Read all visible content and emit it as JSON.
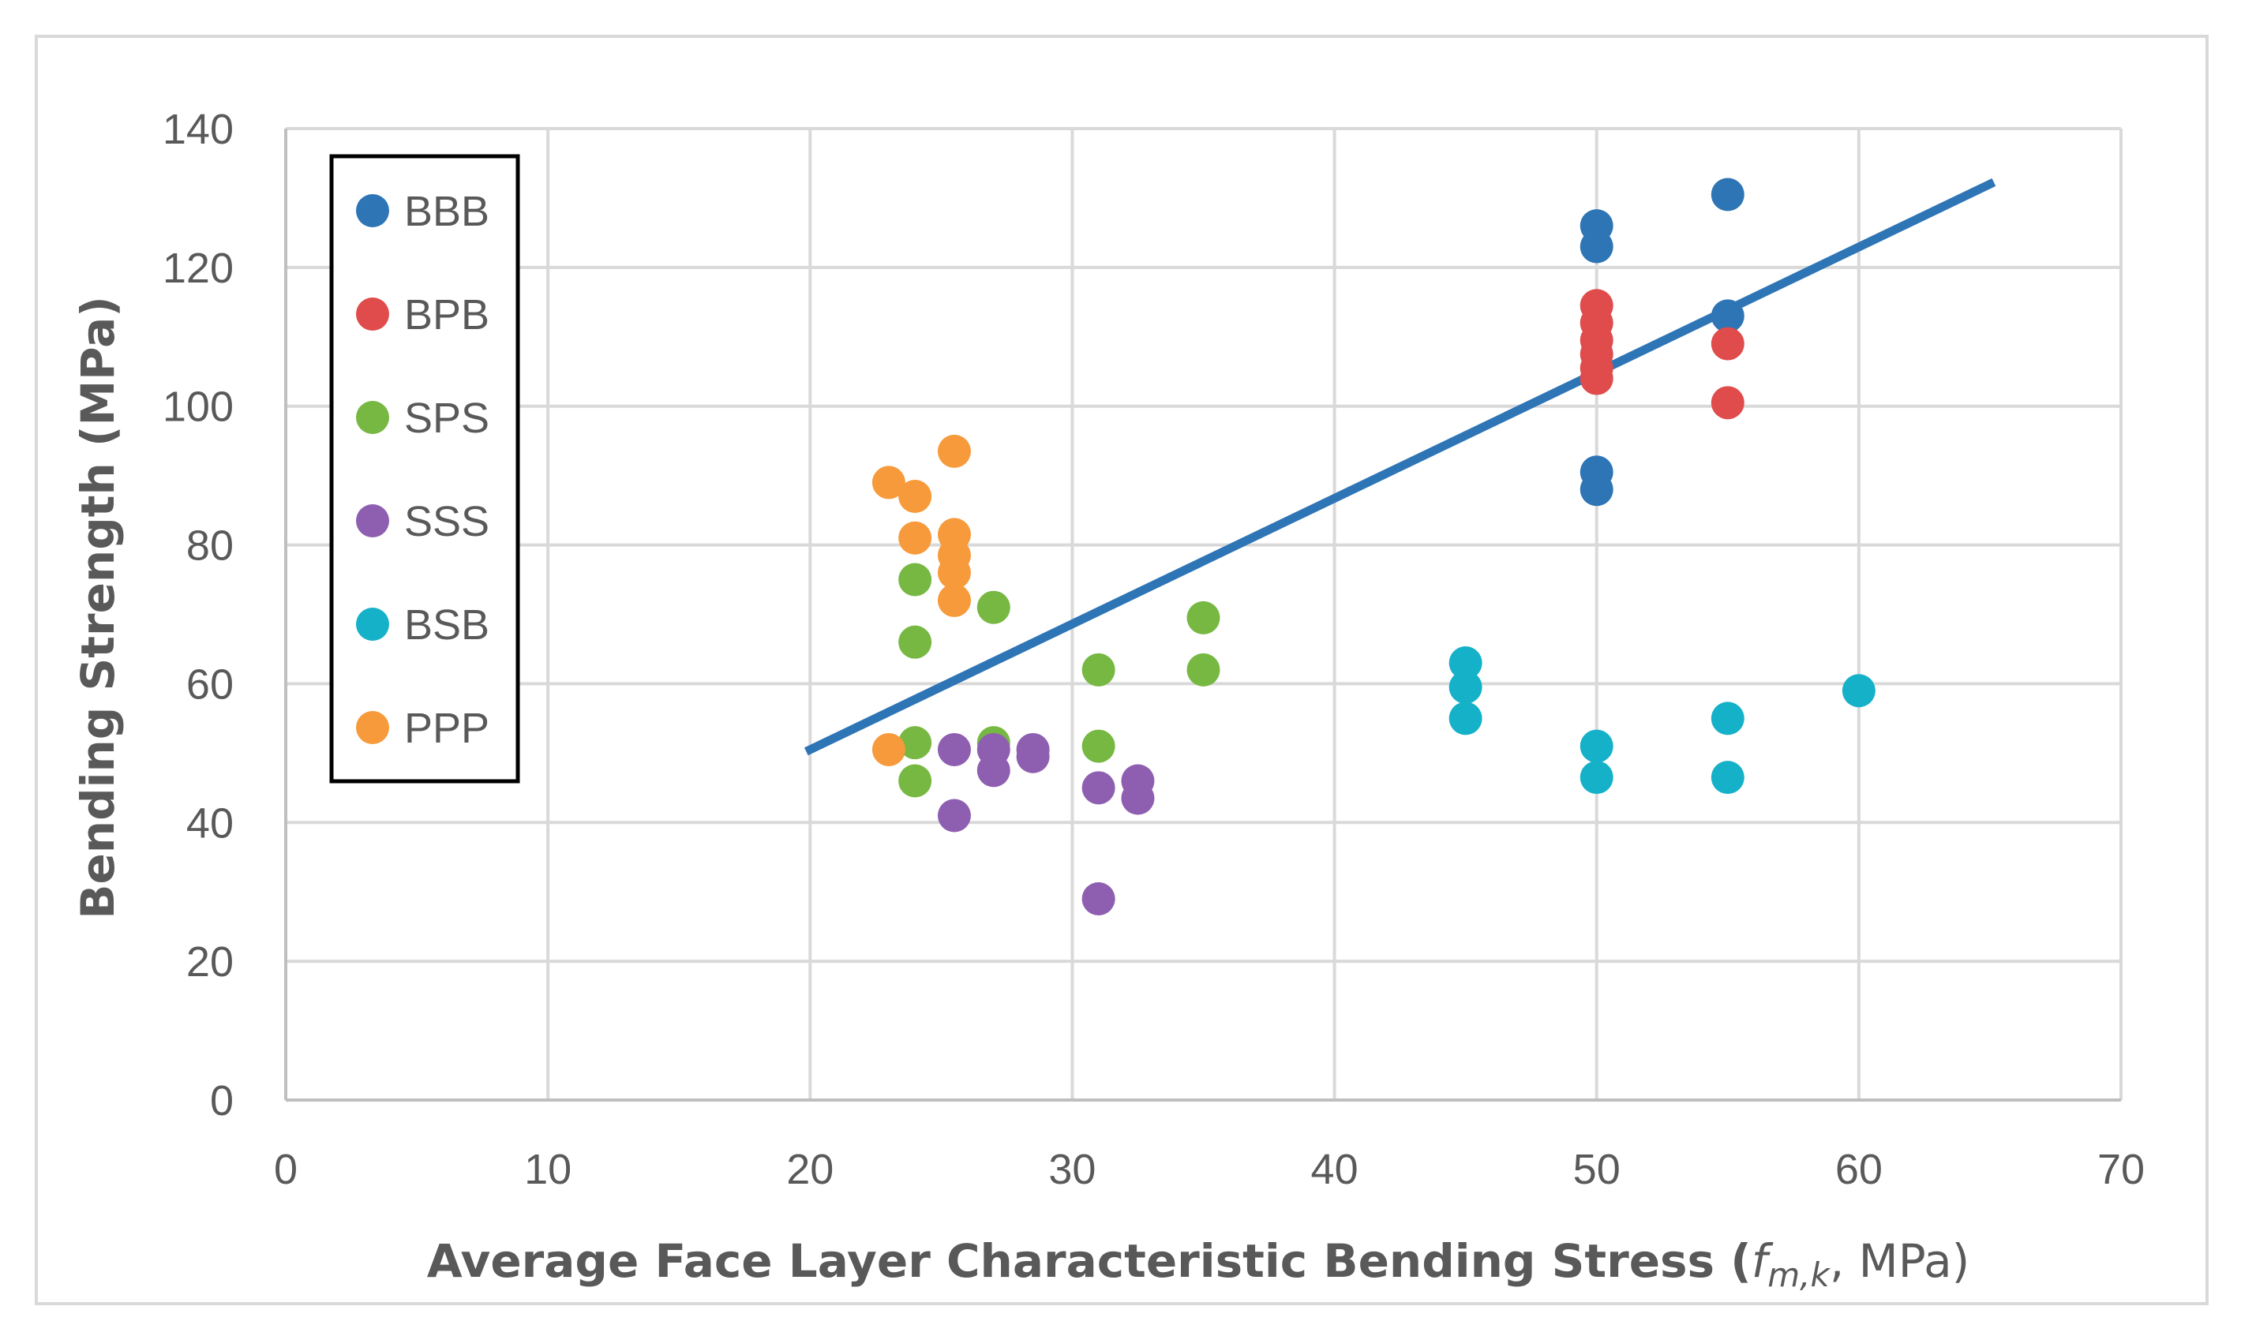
{
  "chart_data": {
    "type": "scatter",
    "xlabel": "Average Face Layer Characteristic Bending Stress (",
    "xlabel_italic": "f",
    "xlabel_subscript": "m,k",
    "xlabel_suffix": ", MPa)",
    "ylabel": "Bending Strength (MPa)",
    "xlim": [
      0,
      70
    ],
    "ylim": [
      0,
      140
    ],
    "x_ticks": [
      0,
      10,
      20,
      30,
      40,
      50,
      60,
      70
    ],
    "y_ticks": [
      0,
      20,
      40,
      60,
      80,
      100,
      120,
      140
    ],
    "x_tick_labels": [
      "0",
      "10",
      "20",
      "30",
      "40",
      "50",
      "60",
      "70"
    ],
    "y_tick_labels": [
      "0",
      "20",
      "40",
      "60",
      "80",
      "100",
      "120",
      "140"
    ],
    "grid": true,
    "legend_position": "top-left",
    "series": [
      {
        "name": "BBB",
        "color": "#2e75b6",
        "points": [
          [
            50,
            126
          ],
          [
            50,
            123
          ],
          [
            50,
            90.5
          ],
          [
            50,
            88
          ],
          [
            55,
            130.5
          ],
          [
            55,
            113
          ]
        ]
      },
      {
        "name": "BPB",
        "color": "#e04b4b",
        "points": [
          [
            50,
            114.5
          ],
          [
            50,
            112
          ],
          [
            50,
            109.5
          ],
          [
            50,
            107.5
          ],
          [
            50,
            105.5
          ],
          [
            50,
            104
          ],
          [
            55,
            109
          ],
          [
            55,
            100.5
          ]
        ]
      },
      {
        "name": "SPS",
        "color": "#77b843",
        "points": [
          [
            24,
            75
          ],
          [
            24,
            66
          ],
          [
            24,
            51.5
          ],
          [
            24,
            46
          ],
          [
            27,
            71
          ],
          [
            27,
            51.5
          ],
          [
            31,
            62
          ],
          [
            31,
            51
          ],
          [
            35,
            69.5
          ],
          [
            35,
            62
          ]
        ]
      },
      {
        "name": "SSS",
        "color": "#8e5fb0",
        "points": [
          [
            25.5,
            50.5
          ],
          [
            25.5,
            41
          ],
          [
            27,
            50.5
          ],
          [
            27,
            47.5
          ],
          [
            28.5,
            50.5
          ],
          [
            28.5,
            49.5
          ],
          [
            31,
            45
          ],
          [
            31,
            29
          ],
          [
            32.5,
            46
          ],
          [
            32.5,
            43.5
          ]
        ]
      },
      {
        "name": "BSB",
        "color": "#15b1c9",
        "points": [
          [
            45,
            63
          ],
          [
            45,
            59.5
          ],
          [
            45,
            55
          ],
          [
            50,
            51
          ],
          [
            50,
            46.5
          ],
          [
            55,
            55
          ],
          [
            55,
            46.5
          ],
          [
            60,
            59
          ]
        ]
      },
      {
        "name": "PPP",
        "color": "#f79a3b",
        "points": [
          [
            23,
            89
          ],
          [
            23,
            50.5
          ],
          [
            24,
            87
          ],
          [
            24,
            81
          ],
          [
            25.5,
            93.5
          ],
          [
            25.5,
            81.5
          ],
          [
            25.5,
            78.5
          ],
          [
            25.5,
            76
          ],
          [
            25.5,
            72
          ]
        ]
      }
    ],
    "trendline": {
      "color": "#2e75b6",
      "from": [
        20,
        50.5
      ],
      "to": [
        65,
        132
      ]
    }
  }
}
